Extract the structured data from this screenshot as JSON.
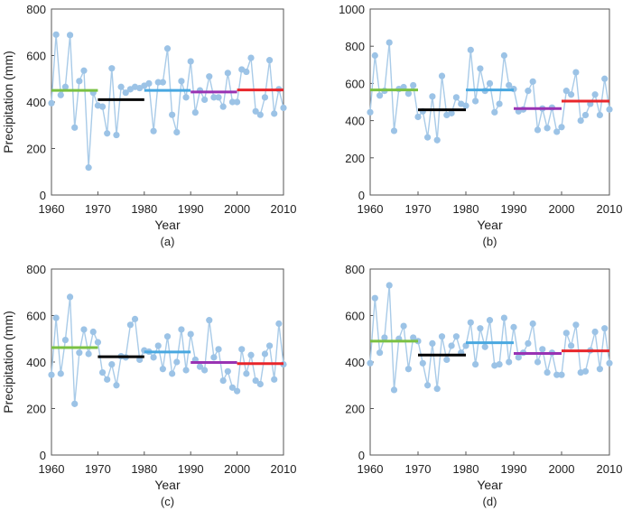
{
  "figure": {
    "series_color": "#a9cbe8",
    "point_color": "#9cc3e6",
    "decade_colors": [
      "#7ac143",
      "#000000",
      "#49a8e0",
      "#9933b3",
      "#e8262b"
    ]
  },
  "chart_data": [
    {
      "type": "line",
      "panel_label": "(a)",
      "xlabel": "Year",
      "ylabel": "Precipitation (mm)",
      "xlim": [
        1960,
        2010
      ],
      "ylim": [
        0,
        800
      ],
      "xticks": [
        1960,
        1970,
        1980,
        1990,
        2000,
        2010
      ],
      "yticks": [
        0,
        200,
        400,
        600,
        800
      ],
      "x": [
        1960,
        1961,
        1962,
        1963,
        1964,
        1965,
        1966,
        1967,
        1968,
        1969,
        1970,
        1971,
        1972,
        1973,
        1974,
        1975,
        1976,
        1977,
        1978,
        1979,
        1980,
        1981,
        1982,
        1983,
        1984,
        1985,
        1986,
        1987,
        1988,
        1989,
        1990,
        1991,
        1992,
        1993,
        1994,
        1995,
        1996,
        1997,
        1998,
        1999,
        2000,
        2001,
        2002,
        2003,
        2004,
        2005,
        2006,
        2007,
        2008,
        2009,
        2010
      ],
      "y": [
        395,
        690,
        430,
        465,
        688,
        290,
        490,
        535,
        118,
        440,
        385,
        380,
        265,
        545,
        258,
        465,
        440,
        455,
        465,
        460,
        470,
        480,
        275,
        485,
        485,
        630,
        345,
        270,
        490,
        420,
        575,
        355,
        450,
        410,
        510,
        420,
        420,
        380,
        525,
        400,
        400,
        540,
        530,
        590,
        360,
        345,
        420,
        580,
        350,
        455,
        375
      ],
      "decade_means": [
        {
          "label": "1960s",
          "start": 1960,
          "end": 1970,
          "value": 450
        },
        {
          "label": "1970s",
          "start": 1970,
          "end": 1980,
          "value": 410
        },
        {
          "label": "1980s",
          "start": 1980,
          "end": 1990,
          "value": 450
        },
        {
          "label": "1990s",
          "start": 1990,
          "end": 2000,
          "value": 443
        },
        {
          "label": "2000s",
          "start": 2000,
          "end": 2010,
          "value": 452
        }
      ]
    },
    {
      "type": "line",
      "panel_label": "(b)",
      "xlabel": "Year",
      "ylabel": "",
      "xlim": [
        1960,
        2010
      ],
      "ylim": [
        0,
        1000
      ],
      "xticks": [
        1960,
        1970,
        1980,
        1990,
        2000,
        2010
      ],
      "yticks": [
        0,
        200,
        400,
        600,
        800,
        1000
      ],
      "x": [
        1960,
        1961,
        1962,
        1963,
        1964,
        1965,
        1966,
        1967,
        1968,
        1969,
        1970,
        1971,
        1972,
        1973,
        1974,
        1975,
        1976,
        1977,
        1978,
        1979,
        1980,
        1981,
        1982,
        1983,
        1984,
        1985,
        1986,
        1987,
        1988,
        1989,
        1990,
        1991,
        1992,
        1993,
        1994,
        1995,
        1996,
        1997,
        1998,
        1999,
        2000,
        2001,
        2002,
        2003,
        2004,
        2005,
        2006,
        2007,
        2008,
        2009,
        2010
      ],
      "y": [
        445,
        750,
        535,
        560,
        820,
        345,
        570,
        580,
        545,
        590,
        420,
        450,
        310,
        530,
        295,
        640,
        430,
        440,
        525,
        490,
        480,
        780,
        505,
        680,
        560,
        600,
        445,
        490,
        750,
        590,
        570,
        450,
        460,
        560,
        610,
        350,
        465,
        360,
        470,
        340,
        365,
        560,
        540,
        660,
        400,
        430,
        490,
        540,
        430,
        625,
        460
      ],
      "decade_means": [
        {
          "label": "1960s",
          "start": 1960,
          "end": 1970,
          "value": 565
        },
        {
          "label": "1970s",
          "start": 1970,
          "end": 1980,
          "value": 458
        },
        {
          "label": "1980s",
          "start": 1980,
          "end": 1990,
          "value": 565
        },
        {
          "label": "1990s",
          "start": 1990,
          "end": 2000,
          "value": 465
        },
        {
          "label": "2000s",
          "start": 2000,
          "end": 2010,
          "value": 505
        }
      ]
    },
    {
      "type": "line",
      "panel_label": "(c)",
      "xlabel": "Year",
      "ylabel": "Precipitation (mm)",
      "xlim": [
        1960,
        2010
      ],
      "ylim": [
        0,
        800
      ],
      "xticks": [
        1960,
        1970,
        1980,
        1990,
        2000,
        2010
      ],
      "yticks": [
        0,
        200,
        400,
        600,
        800
      ],
      "x": [
        1960,
        1961,
        1962,
        1963,
        1964,
        1965,
        1966,
        1967,
        1968,
        1969,
        1970,
        1971,
        1972,
        1973,
        1974,
        1975,
        1976,
        1977,
        1978,
        1979,
        1980,
        1981,
        1982,
        1983,
        1984,
        1985,
        1986,
        1987,
        1988,
        1989,
        1990,
        1991,
        1992,
        1993,
        1994,
        1995,
        1996,
        1997,
        1998,
        1999,
        2000,
        2001,
        2002,
        2003,
        2004,
        2005,
        2006,
        2007,
        2008,
        2009,
        2010
      ],
      "y": [
        345,
        590,
        350,
        495,
        680,
        220,
        440,
        540,
        435,
        530,
        485,
        355,
        325,
        390,
        300,
        425,
        420,
        560,
        585,
        410,
        450,
        445,
        420,
        470,
        370,
        510,
        350,
        400,
        540,
        365,
        520,
        410,
        380,
        365,
        580,
        420,
        455,
        320,
        360,
        290,
        275,
        455,
        350,
        430,
        320,
        305,
        435,
        470,
        325,
        565,
        390
      ],
      "decade_means": [
        {
          "label": "1960s",
          "start": 1960,
          "end": 1970,
          "value": 462
        },
        {
          "label": "1970s",
          "start": 1970,
          "end": 1980,
          "value": 423
        },
        {
          "label": "1980s",
          "start": 1980,
          "end": 1990,
          "value": 443
        },
        {
          "label": "1990s",
          "start": 1990,
          "end": 2000,
          "value": 398
        },
        {
          "label": "2000s",
          "start": 2000,
          "end": 2010,
          "value": 393
        }
      ]
    },
    {
      "type": "line",
      "panel_label": "(d)",
      "xlabel": "Year",
      "ylabel": "",
      "xlim": [
        1960,
        2010
      ],
      "ylim": [
        0,
        800
      ],
      "xticks": [
        1960,
        1970,
        1980,
        1990,
        2000,
        2010
      ],
      "yticks": [
        0,
        200,
        400,
        600,
        800
      ],
      "x": [
        1960,
        1961,
        1962,
        1963,
        1964,
        1965,
        1966,
        1967,
        1968,
        1969,
        1970,
        1971,
        1972,
        1973,
        1974,
        1975,
        1976,
        1977,
        1978,
        1979,
        1980,
        1981,
        1982,
        1983,
        1984,
        1985,
        1986,
        1987,
        1988,
        1989,
        1990,
        1991,
        1992,
        1993,
        1994,
        1995,
        1996,
        1997,
        1998,
        1999,
        2000,
        2001,
        2002,
        2003,
        2004,
        2005,
        2006,
        2007,
        2008,
        2009,
        2010
      ],
      "y": [
        395,
        675,
        440,
        505,
        730,
        280,
        500,
        555,
        370,
        505,
        490,
        395,
        300,
        480,
        285,
        510,
        410,
        470,
        510,
        440,
        470,
        570,
        390,
        545,
        465,
        580,
        385,
        390,
        590,
        400,
        550,
        420,
        440,
        480,
        565,
        400,
        455,
        355,
        440,
        345,
        345,
        525,
        470,
        560,
        355,
        360,
        450,
        530,
        370,
        545,
        395
      ],
      "decade_means": [
        {
          "label": "1960s",
          "start": 1960,
          "end": 1970,
          "value": 490
        },
        {
          "label": "1970s",
          "start": 1970,
          "end": 1980,
          "value": 430
        },
        {
          "label": "1980s",
          "start": 1980,
          "end": 1990,
          "value": 483
        },
        {
          "label": "1990s",
          "start": 1990,
          "end": 2000,
          "value": 437
        },
        {
          "label": "2000s",
          "start": 2000,
          "end": 2010,
          "value": 448
        }
      ]
    }
  ]
}
